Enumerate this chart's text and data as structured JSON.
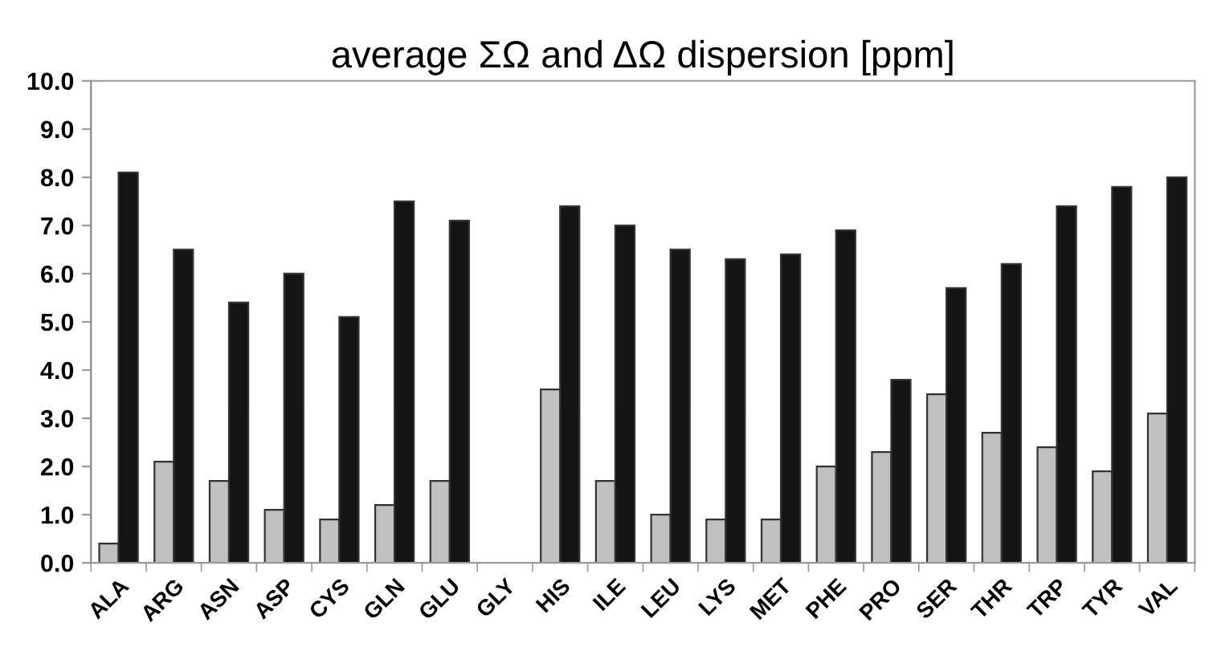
{
  "chart_data": {
    "type": "bar",
    "title": "average ΣΩ and ΔΩ dispersion [ppm]",
    "categories": [
      "ALA",
      "ARG",
      "ASN",
      "ASP",
      "CYS",
      "GLN",
      "GLU",
      "GLY",
      "HIS",
      "ILE",
      "LEU",
      "LYS",
      "MET",
      "PHE",
      "PRO",
      "SER",
      "THR",
      "TRP",
      "TYR",
      "VAL"
    ],
    "series": [
      {
        "color": "#c0c0c0",
        "values": [
          0.4,
          2.1,
          1.7,
          1.1,
          0.9,
          1.2,
          1.7,
          null,
          3.6,
          1.7,
          1.0,
          0.9,
          0.9,
          2.0,
          2.3,
          3.5,
          2.7,
          2.4,
          1.9,
          3.1
        ]
      },
      {
        "color": "#141414",
        "values": [
          8.1,
          6.5,
          5.4,
          6.0,
          5.1,
          7.5,
          7.1,
          null,
          7.4,
          7.0,
          6.5,
          6.3,
          6.4,
          6.9,
          3.8,
          5.7,
          6.2,
          7.4,
          7.8,
          8.0
        ]
      }
    ],
    "ylim": [
      0,
      10
    ],
    "yticks": [
      {
        "value": 0,
        "label": "0.0"
      },
      {
        "value": 1,
        "label": "1.0"
      },
      {
        "value": 2,
        "label": "2.0"
      },
      {
        "value": 3,
        "label": "3.0"
      },
      {
        "value": 4,
        "label": "4.0"
      },
      {
        "value": 5,
        "label": "5.0"
      },
      {
        "value": 6,
        "label": "6.0"
      },
      {
        "value": 7,
        "label": "7.0"
      },
      {
        "value": 8,
        "label": "8.0"
      },
      {
        "value": 9,
        "label": "9.0"
      },
      {
        "value": 10,
        "label": "10.0"
      }
    ],
    "grid": false,
    "legend": false
  }
}
